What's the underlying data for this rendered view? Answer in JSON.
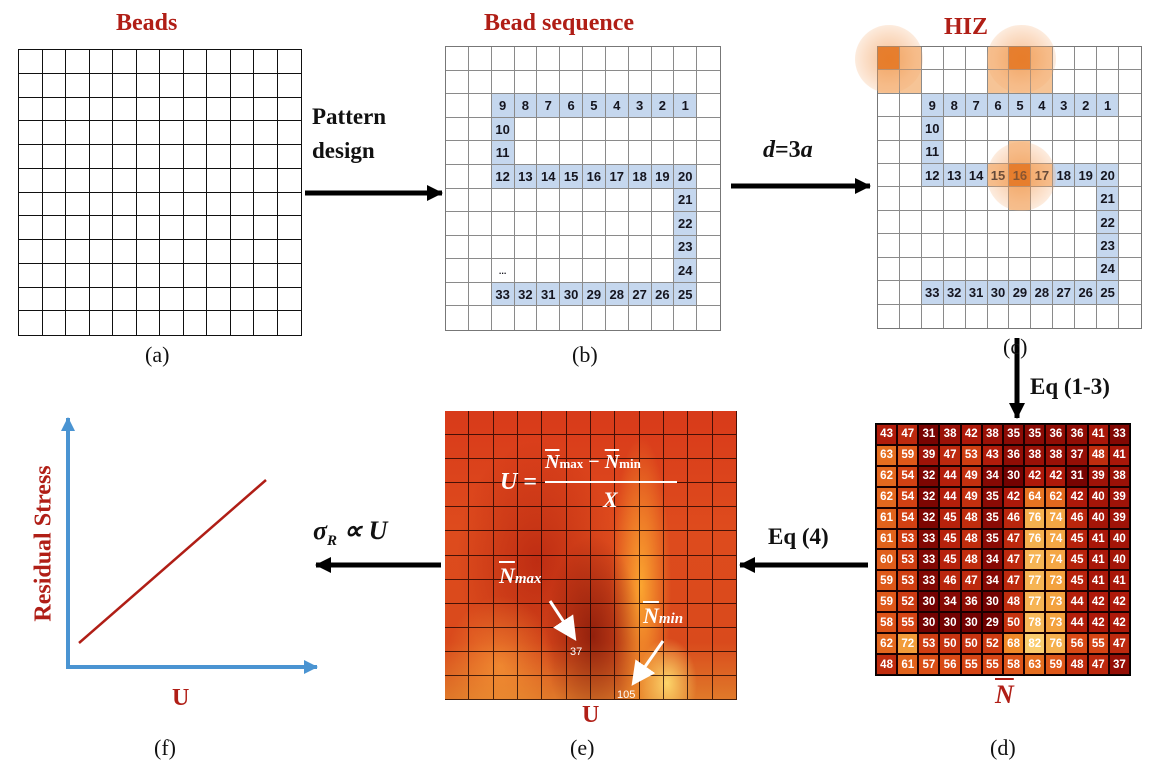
{
  "titles": {
    "a": "Beads",
    "b": "Bead sequence",
    "c": "HIZ"
  },
  "panel_labels": {
    "a": "(a)",
    "b": "(b)",
    "c": "(c)",
    "d": "(d)",
    "e": "(e)",
    "f": "(f)"
  },
  "arrows": {
    "ab": "Pattern\ndesign",
    "bc_d": "d",
    "bc_eq": "=3",
    "bc_a": "a",
    "cd": "Eq (1-3)",
    "de": "Eq (4)",
    "ef_sigma": "σ",
    "ef_R": "R",
    "ef_rest": " ∝ U"
  },
  "sequence": [
    {
      "n": "9",
      "r": 2,
      "c": 2
    },
    {
      "n": "8",
      "r": 2,
      "c": 3
    },
    {
      "n": "7",
      "r": 2,
      "c": 4
    },
    {
      "n": "6",
      "r": 2,
      "c": 5
    },
    {
      "n": "5",
      "r": 2,
      "c": 6
    },
    {
      "n": "4",
      "r": 2,
      "c": 7
    },
    {
      "n": "3",
      "r": 2,
      "c": 8
    },
    {
      "n": "2",
      "r": 2,
      "c": 9
    },
    {
      "n": "1",
      "r": 2,
      "c": 10
    },
    {
      "n": "10",
      "r": 3,
      "c": 2
    },
    {
      "n": "11",
      "r": 4,
      "c": 2
    },
    {
      "n": "12",
      "r": 5,
      "c": 2
    },
    {
      "n": "13",
      "r": 5,
      "c": 3
    },
    {
      "n": "14",
      "r": 5,
      "c": 4
    },
    {
      "n": "15",
      "r": 5,
      "c": 5
    },
    {
      "n": "16",
      "r": 5,
      "c": 6
    },
    {
      "n": "17",
      "r": 5,
      "c": 7
    },
    {
      "n": "18",
      "r": 5,
      "c": 8
    },
    {
      "n": "19",
      "r": 5,
      "c": 9
    },
    {
      "n": "20",
      "r": 5,
      "c": 10
    },
    {
      "n": "21",
      "r": 6,
      "c": 10
    },
    {
      "n": "22",
      "r": 7,
      "c": 10
    },
    {
      "n": "23",
      "r": 8,
      "c": 10
    },
    {
      "n": "24",
      "r": 9,
      "c": 10
    },
    {
      "n": "25",
      "r": 10,
      "c": 10
    },
    {
      "n": "26",
      "r": 10,
      "c": 9
    },
    {
      "n": "27",
      "r": 10,
      "c": 8
    },
    {
      "n": "28",
      "r": 10,
      "c": 7
    },
    {
      "n": "29",
      "r": 10,
      "c": 6
    },
    {
      "n": "30",
      "r": 10,
      "c": 5
    },
    {
      "n": "31",
      "r": 10,
      "c": 4
    },
    {
      "n": "32",
      "r": 10,
      "c": 3
    },
    {
      "n": "33",
      "r": 10,
      "c": 2
    }
  ],
  "sequence_ellipsis": "...",
  "hiz": {
    "dark": [
      [
        0,
        0
      ],
      [
        0,
        6
      ],
      [
        5,
        6
      ]
    ],
    "light": [
      [
        0,
        1
      ],
      [
        1,
        0
      ],
      [
        1,
        1
      ],
      [
        0,
        5
      ],
      [
        0,
        7
      ],
      [
        1,
        5
      ],
      [
        1,
        6
      ],
      [
        1,
        7
      ],
      [
        4,
        6
      ],
      [
        5,
        5
      ],
      [
        5,
        7
      ],
      [
        6,
        6
      ]
    ],
    "glow": [
      [
        0,
        0
      ],
      [
        0,
        6
      ],
      [
        5,
        6
      ]
    ]
  },
  "matrix": [
    [
      43,
      47,
      31,
      38,
      42,
      38,
      35,
      35,
      36,
      36,
      41,
      33
    ],
    [
      63,
      59,
      39,
      47,
      53,
      43,
      36,
      38,
      38,
      37,
      48,
      41
    ],
    [
      62,
      54,
      32,
      44,
      49,
      34,
      30,
      42,
      42,
      31,
      39,
      38
    ],
    [
      62,
      54,
      32,
      44,
      49,
      35,
      42,
      64,
      62,
      42,
      40,
      39
    ],
    [
      61,
      54,
      32,
      45,
      48,
      35,
      46,
      76,
      74,
      46,
      40,
      39
    ],
    [
      61,
      53,
      33,
      45,
      48,
      35,
      47,
      76,
      74,
      45,
      41,
      40
    ],
    [
      60,
      53,
      33,
      45,
      48,
      34,
      47,
      77,
      74,
      45,
      41,
      40
    ],
    [
      59,
      53,
      33,
      46,
      47,
      34,
      47,
      77,
      73,
      45,
      41,
      41
    ],
    [
      59,
      52,
      30,
      34,
      36,
      30,
      48,
      77,
      73,
      44,
      42,
      42
    ],
    [
      58,
      55,
      30,
      30,
      30,
      29,
      50,
      78,
      73,
      44,
      42,
      42
    ],
    [
      62,
      72,
      53,
      50,
      50,
      52,
      68,
      82,
      76,
      56,
      55,
      47
    ],
    [
      48,
      61,
      57,
      56,
      55,
      55,
      58,
      63,
      59,
      48,
      47,
      37
    ]
  ],
  "matrix_symbol": "N",
  "uniformity": {
    "U": "U",
    "eq": "=",
    "N": "N",
    "max": "max",
    "min": "min",
    "minus": "−",
    "X": "X",
    "nmax_sub": "max",
    "nmin_sub": "min",
    "val_max": "37",
    "val_min": "105",
    "xlabel": "U"
  },
  "plot": {
    "ylabel": "Residual Stress",
    "xlabel": "U"
  },
  "colors": {
    "title": "#b01e16",
    "bead": "#c5d7ee",
    "hiz_dark": "#dd6a14",
    "hiz_light": "#f6c496",
    "axis": "#4a94d2",
    "line": "#b01e16"
  }
}
